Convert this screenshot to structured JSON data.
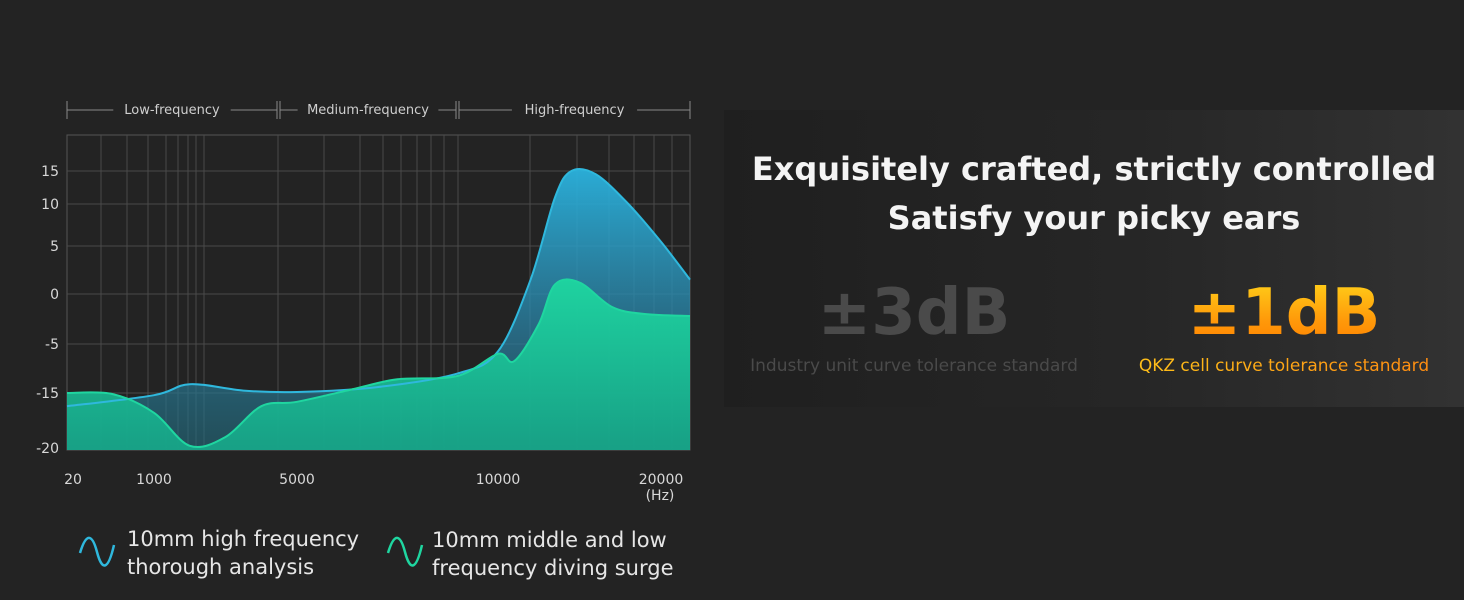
{
  "chart_data": {
    "type": "area",
    "xlabel": "(Hz)",
    "bands": [
      "Low-frequency",
      "Medium-frequency",
      "High-frequency"
    ],
    "x_ticks": [
      "20",
      "1000",
      "5000",
      "10000",
      "20000"
    ],
    "y_ticks": [
      "15",
      "10",
      "5",
      "0",
      "-5",
      "-15",
      "-20"
    ],
    "series": [
      {
        "name": "10mm high frequency thorough analysis",
        "color": "#2fb8dd",
        "values": [
          {
            "x": "20",
            "y": -16.2
          },
          {
            "x": "1000",
            "y": -15.2
          },
          {
            "x": "2000",
            "y": -13.2
          },
          {
            "x": "3500",
            "y": -14.5
          },
          {
            "x": "5000",
            "y": -14.8
          },
          {
            "x": "7000",
            "y": -13.8
          },
          {
            "x": "9000",
            "y": -11.0
          },
          {
            "x": "10000",
            "y": -6.5
          },
          {
            "x": "12000",
            "y": 1.5
          },
          {
            "x": "13500",
            "y": 11.0
          },
          {
            "x": "14500",
            "y": 15.0
          },
          {
            "x": "16000",
            "y": 14.5
          },
          {
            "x": "18000",
            "y": 10.0
          },
          {
            "x": "20000",
            "y": 5.5
          },
          {
            "x": "22000",
            "y": 1.5
          }
        ]
      },
      {
        "name": "10mm middle and low frequency diving surge",
        "color": "#1fd6a0",
        "values": [
          {
            "x": "20",
            "y": -15.0
          },
          {
            "x": "500",
            "y": -15.1
          },
          {
            "x": "1000",
            "y": -16.8
          },
          {
            "x": "2000",
            "y": -19.8
          },
          {
            "x": "3000",
            "y": -19.0
          },
          {
            "x": "4000",
            "y": -16.2
          },
          {
            "x": "5000",
            "y": -15.8
          },
          {
            "x": "6500",
            "y": -14.0
          },
          {
            "x": "7500",
            "y": -12.2
          },
          {
            "x": "9000",
            "y": -11.5
          },
          {
            "x": "10000",
            "y": -7.0
          },
          {
            "x": "11000",
            "y": -8.5
          },
          {
            "x": "12500",
            "y": -3.0
          },
          {
            "x": "13500",
            "y": 1.0
          },
          {
            "x": "15000",
            "y": 1.2
          },
          {
            "x": "17000",
            "y": -1.3
          },
          {
            "x": "19000",
            "y": -2.0
          },
          {
            "x": "22000",
            "y": -2.2
          }
        ]
      }
    ]
  },
  "headline": {
    "line1": "Exquisitely crafted, strictly controlled",
    "line2": "Satisfy your picky ears"
  },
  "compare": {
    "industry_value": "±3dB",
    "industry_label": "Industry unit curve tolerance standard",
    "qkz_value": "±1dB",
    "qkz_label": "QKZ cell curve tolerance standard"
  },
  "legend": {
    "high_line1": "10mm high frequency",
    "high_line2": "thorough analysis",
    "mid_line1": "10mm middle and low",
    "mid_line2": "frequency diving surge",
    "high_icon": "wave-icon",
    "mid_icon": "wave-icon"
  }
}
